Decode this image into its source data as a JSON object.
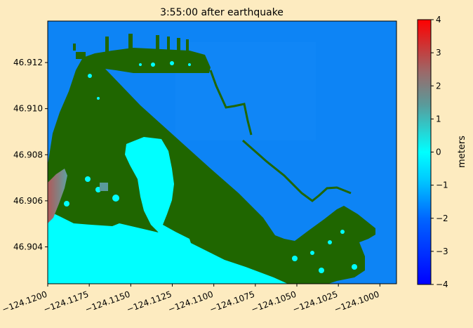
{
  "chart_data": {
    "type": "heatmap",
    "title": "3:55:00 after earthquake",
    "xlabel": "",
    "ylabel": "",
    "xlim": [
      -124.12,
      -124.099
    ],
    "ylim": [
      46.9024,
      46.9138
    ],
    "x_ticks": [
      {
        "value": -124.12,
        "label": "−124.1200"
      },
      {
        "value": -124.1175,
        "label": "−124.1175"
      },
      {
        "value": -124.115,
        "label": "−124.1150"
      },
      {
        "value": -124.1125,
        "label": "−124.1125"
      },
      {
        "value": -124.11,
        "label": "−124.1100"
      },
      {
        "value": -124.1075,
        "label": "−124.1075"
      },
      {
        "value": -124.105,
        "label": "−124.1050"
      },
      {
        "value": -124.1025,
        "label": "−124.1025"
      },
      {
        "value": -124.1,
        "label": "−124.1000"
      }
    ],
    "y_ticks": [
      {
        "value": 46.904,
        "label": "46.904"
      },
      {
        "value": 46.906,
        "label": "46.906"
      },
      {
        "value": 46.908,
        "label": "46.908"
      },
      {
        "value": 46.91,
        "label": "46.910"
      },
      {
        "value": 46.912,
        "label": "46.912"
      }
    ],
    "colorbar": {
      "label": "meters",
      "range": [
        -4,
        4
      ],
      "ticks": [
        {
          "value": 4,
          "label": "4"
        },
        {
          "value": 3,
          "label": "3"
        },
        {
          "value": 2,
          "label": "2"
        },
        {
          "value": 1,
          "label": "1"
        },
        {
          "value": 0,
          "label": "0"
        },
        {
          "value": -1,
          "label": "−1"
        },
        {
          "value": -2,
          "label": "−2"
        },
        {
          "value": -3,
          "label": "−3"
        },
        {
          "value": -4,
          "label": "−4"
        }
      ],
      "colors": [
        "#0000ff",
        "#0066ff",
        "#00ccff",
        "#00ffff",
        "#8c6060",
        "#ff0000"
      ]
    },
    "colors": {
      "background": "#fdebc0",
      "ocean": "#0d84f5",
      "land": "#1f6600",
      "flooded_land": "#00ffff",
      "high_water": "#a06a6a"
    },
    "fields": {
      "ocean_level_m": -1.6,
      "inland_flood_level_m": 0.0,
      "western_edge_peak_m": 2.0
    }
  }
}
